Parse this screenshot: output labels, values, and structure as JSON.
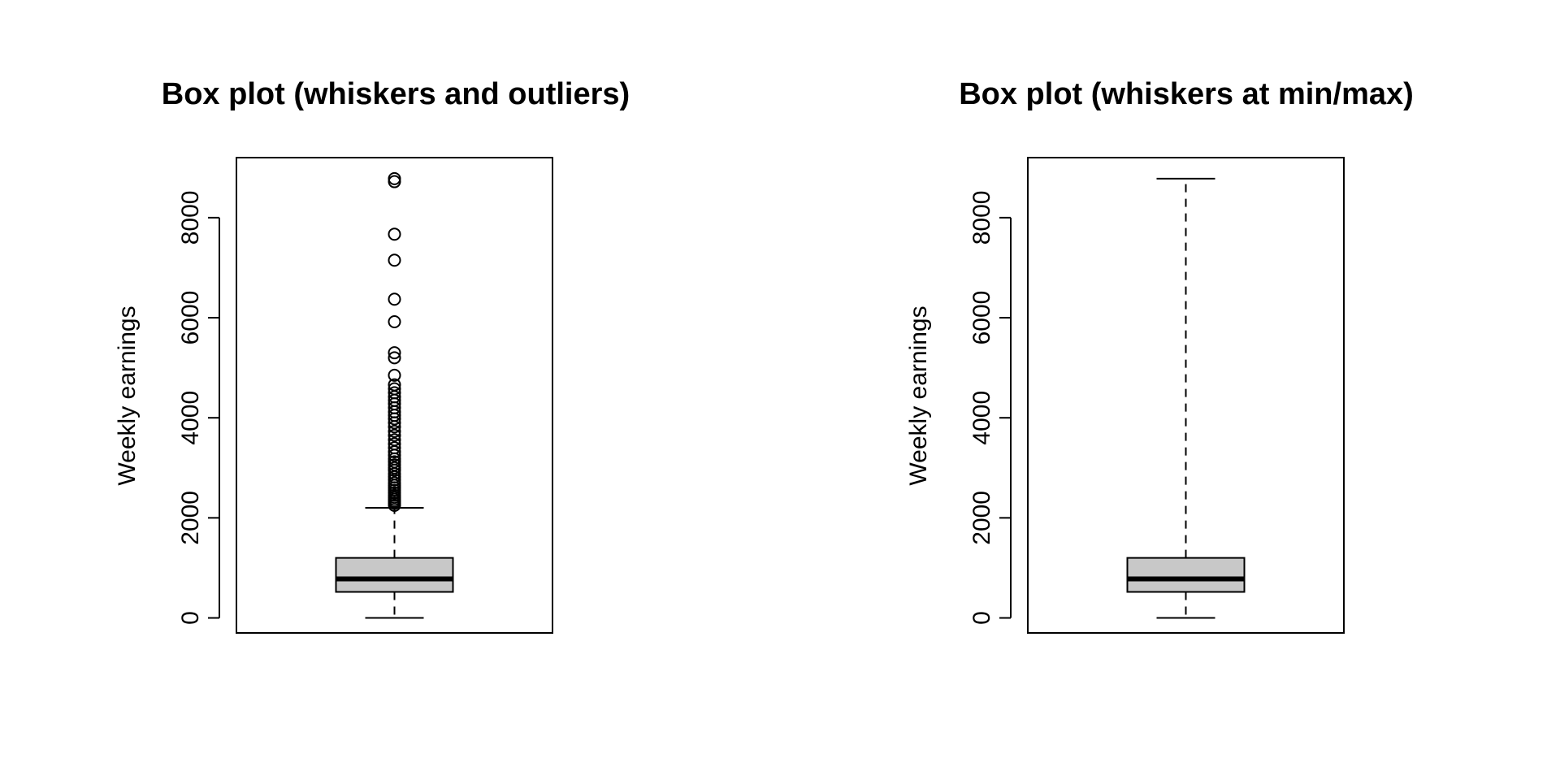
{
  "chart_data": [
    {
      "type": "boxplot",
      "title": "Box plot (whiskers and outliers)",
      "xlabel": "",
      "ylabel": "Weekly earnings",
      "ylim": [
        -300,
        9200
      ],
      "yticks": [
        0,
        2000,
        4000,
        6000,
        8000
      ],
      "grid": false,
      "box": {
        "min": 0,
        "q1": 520,
        "median": 780,
        "q3": 1200,
        "max": 2200
      },
      "outliers": [
        2250,
        2290,
        2330,
        2370,
        2410,
        2450,
        2500,
        2550,
        2600,
        2650,
        2700,
        2760,
        2820,
        2880,
        2950,
        3000,
        3060,
        3120,
        3180,
        3250,
        3320,
        3400,
        3480,
        3560,
        3650,
        3730,
        3820,
        3900,
        3980,
        4050,
        4120,
        4200,
        4280,
        4350,
        4420,
        4500,
        4580,
        4660,
        4850,
        5200,
        5300,
        5920,
        6370,
        7150,
        7670,
        8720,
        8780
      ],
      "fill": "#c8c8c8"
    },
    {
      "type": "boxplot",
      "title": "Box plot (whiskers at min/max)",
      "xlabel": "",
      "ylabel": "Weekly earnings",
      "ylim": [
        -300,
        9200
      ],
      "yticks": [
        0,
        2000,
        4000,
        6000,
        8000
      ],
      "grid": false,
      "box": {
        "min": 0,
        "q1": 520,
        "median": 780,
        "q3": 1200,
        "max": 8780
      },
      "outliers": [],
      "fill": "#c8c8c8"
    }
  ]
}
